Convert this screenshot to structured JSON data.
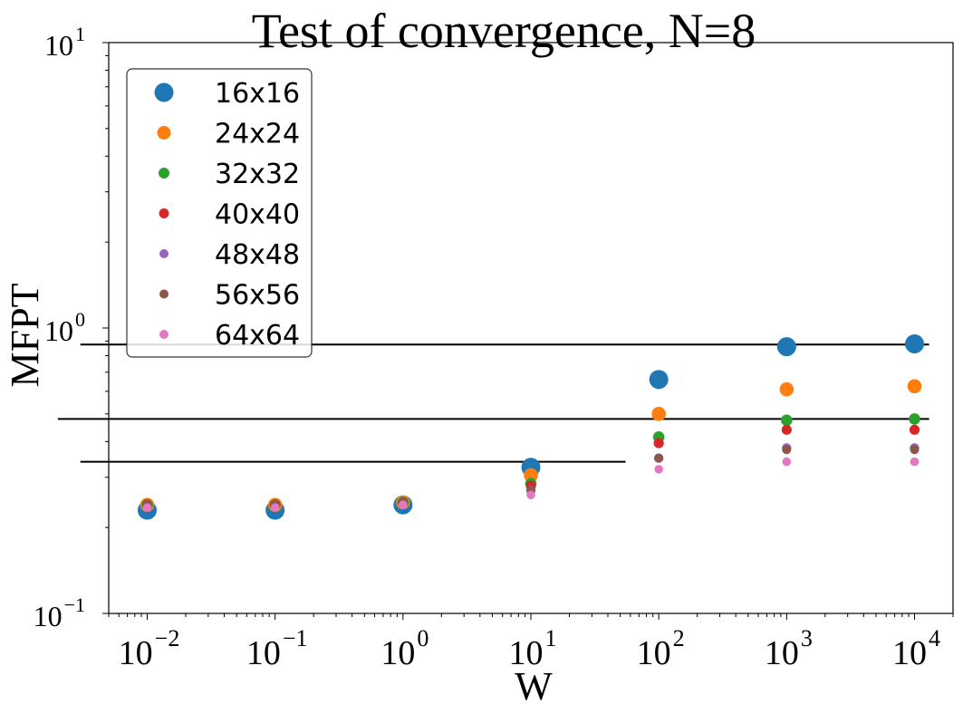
{
  "chart_data": {
    "type": "scatter",
    "title": "Test of convergence, N=8",
    "xlabel": "W",
    "ylabel": "MFPT",
    "xscale": "log",
    "yscale": "log",
    "xlim": [
      0.005,
      20000
    ],
    "ylim": [
      0.1,
      10
    ],
    "x": [
      0.01,
      0.1,
      1,
      10,
      100,
      1000,
      10000
    ],
    "x_tick_labels": [
      {
        "base": "10",
        "exp": "−2"
      },
      {
        "base": "10",
        "exp": "−1"
      },
      {
        "base": "10",
        "exp": "0"
      },
      {
        "base": "10",
        "exp": "1"
      },
      {
        "base": "10",
        "exp": "2"
      },
      {
        "base": "10",
        "exp": "3"
      },
      {
        "base": "10",
        "exp": "4"
      }
    ],
    "y_tick_labels": [
      {
        "base": "10",
        "exp": "−1"
      },
      {
        "base": "10",
        "exp": "0"
      },
      {
        "base": "10",
        "exp": "1"
      }
    ],
    "grid": false,
    "legend_position": "top-left",
    "series": [
      {
        "name": "16x16",
        "color": "#1f77b4",
        "values": [
          0.23,
          0.23,
          0.24,
          0.325,
          0.66,
          0.86,
          0.88
        ]
      },
      {
        "name": "24x24",
        "color": "#ff7f0e",
        "values": [
          0.24,
          0.24,
          0.245,
          0.305,
          0.5,
          0.61,
          0.625
        ]
      },
      {
        "name": "32x32",
        "color": "#2ca02c",
        "values": [
          0.24,
          0.24,
          0.245,
          0.285,
          0.415,
          0.475,
          0.48
        ]
      },
      {
        "name": "40x40",
        "color": "#d62728",
        "values": [
          0.24,
          0.24,
          0.245,
          0.28,
          0.395,
          0.44,
          0.44
        ]
      },
      {
        "name": "48x48",
        "color": "#9467bd",
        "values": [
          0.24,
          0.24,
          0.245,
          0.27,
          0.35,
          0.38,
          0.38
        ]
      },
      {
        "name": "56x56",
        "color": "#8c564b",
        "values": [
          0.24,
          0.24,
          0.245,
          0.27,
          0.35,
          0.375,
          0.375
        ]
      },
      {
        "name": "64x64",
        "color": "#e377c2",
        "values": [
          0.235,
          0.235,
          0.24,
          0.26,
          0.32,
          0.34,
          0.34
        ]
      }
    ],
    "reference_lines": [
      {
        "y": 0.875,
        "x_from": 0.003,
        "x_to": 13000
      },
      {
        "y": 0.48,
        "x_from": 0.002,
        "x_to": 13000
      },
      {
        "y": 0.34,
        "x_from": 0.003,
        "x_to": 55
      }
    ]
  }
}
